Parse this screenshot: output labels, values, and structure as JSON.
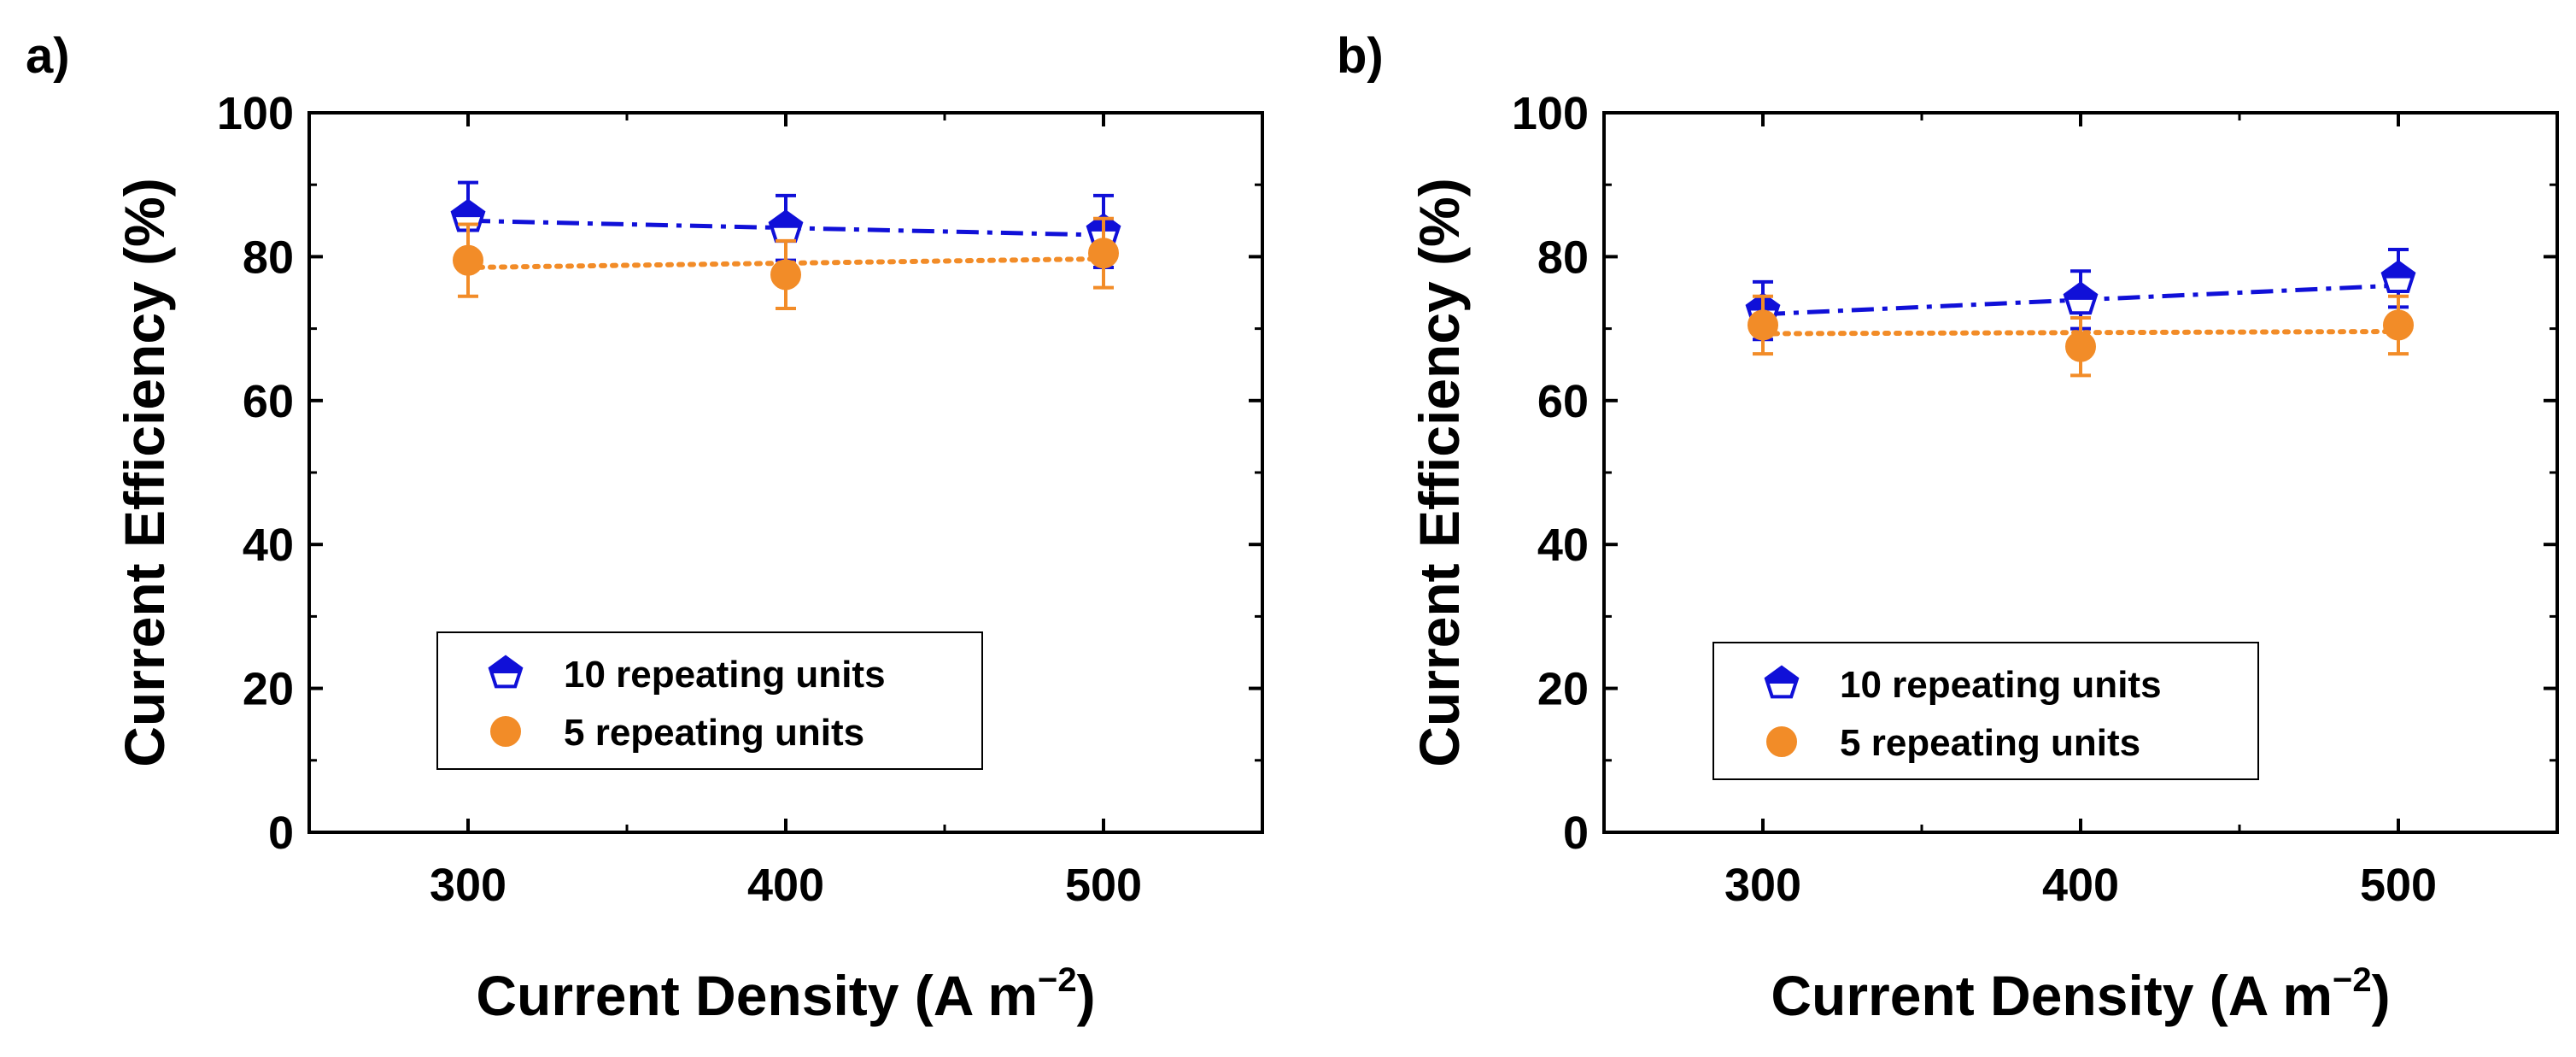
{
  "colors": {
    "series_10": "#1010d8",
    "series_5": "#f28c28",
    "axis": "#000000",
    "background": "#ffffff"
  },
  "chart_data": [
    {
      "panel": "a)",
      "type": "scatter",
      "xlabel": "Current Density (A m",
      "xlabel_sup": "−2",
      "xlabel_close": ")",
      "ylabel": "Current Efficiency (%)",
      "xlim": [
        250,
        550
      ],
      "ylim": [
        0,
        100
      ],
      "xticks": [
        300,
        400,
        500
      ],
      "yticks": [
        0,
        20,
        40,
        60,
        80,
        100
      ],
      "legend": "bottom-left",
      "series": [
        {
          "name": "10 repeating units",
          "marker": "pentagon-half",
          "line": "dash-dot",
          "x": [
            300,
            400,
            500
          ],
          "y": [
            85.5,
            84,
            83.5
          ],
          "err": [
            4.8,
            4.5,
            5
          ],
          "fit": [
            85,
            83
          ]
        },
        {
          "name": "5 repeating units",
          "marker": "circle",
          "line": "dotted",
          "x": [
            300,
            400,
            500
          ],
          "y": [
            79.5,
            77.5,
            80.5
          ],
          "err": [
            5,
            4.7,
            4.8
          ],
          "fit": [
            78.5,
            79.7
          ]
        }
      ]
    },
    {
      "panel": "b)",
      "type": "scatter",
      "xlabel": "Current Density (A m",
      "xlabel_sup": "−2",
      "xlabel_close": ")",
      "ylabel": "Current Efficiency (%)",
      "xlim": [
        250,
        550
      ],
      "ylim": [
        0,
        100
      ],
      "xticks": [
        300,
        400,
        500
      ],
      "yticks": [
        0,
        20,
        40,
        60,
        80,
        100
      ],
      "legend": "bottom-left",
      "series": [
        {
          "name": "10 repeating units",
          "marker": "pentagon-half",
          "line": "dash-dot",
          "x": [
            300,
            400,
            500
          ],
          "y": [
            72.5,
            74,
            77
          ],
          "err": [
            4,
            4,
            4
          ],
          "fit": [
            72,
            76
          ]
        },
        {
          "name": "5 repeating units",
          "marker": "circle",
          "line": "dotted",
          "x": [
            300,
            400,
            500
          ],
          "y": [
            70.5,
            67.5,
            70.5
          ],
          "err": [
            4,
            4,
            4
          ],
          "fit": [
            69.3,
            69.6
          ]
        }
      ]
    }
  ]
}
